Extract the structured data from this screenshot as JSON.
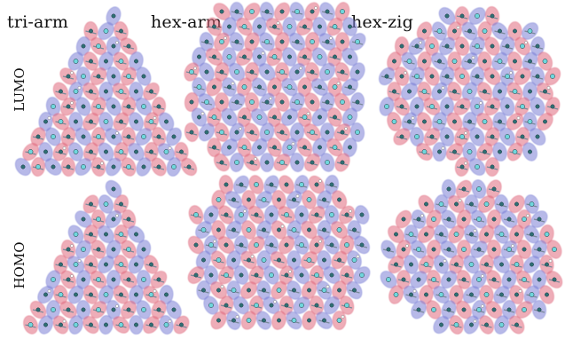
{
  "figure": {
    "columns": [
      "tri-arm",
      "hex-arm",
      "hex-zig"
    ],
    "rows": [
      "LUMO",
      "HOMO"
    ]
  },
  "colors": {
    "lobe_positive": "#e06a7e",
    "lobe_negative": "#7b7fd6",
    "atom_carbon": "#2f6f75",
    "atom_nitrogen": "#6fd6dc",
    "atom_hydrogen": "#ffffff"
  },
  "panels": [
    {
      "id": "tri-arm-lumo",
      "shape": "triangle"
    },
    {
      "id": "hex-arm-lumo",
      "shape": "hexagon"
    },
    {
      "id": "hex-zig-lumo",
      "shape": "oval"
    },
    {
      "id": "tri-arm-homo",
      "shape": "triangle"
    },
    {
      "id": "hex-arm-homo",
      "shape": "hexagon"
    },
    {
      "id": "hex-zig-homo",
      "shape": "oval"
    }
  ]
}
